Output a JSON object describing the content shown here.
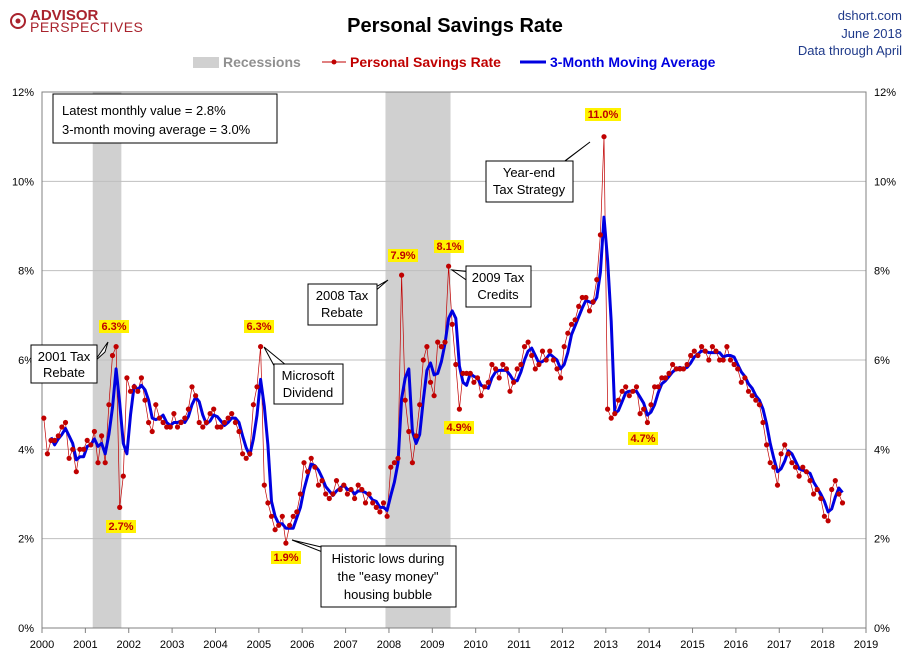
{
  "logo": {
    "line1": "ADVISOR",
    "line2": "PERSPECTIVES"
  },
  "header": {
    "title": "Personal Savings Rate",
    "source": "dshort.com",
    "date": "June 2018",
    "through": "Data through April"
  },
  "legend": {
    "recessions": "Recessions",
    "series": "Personal Savings Rate",
    "ma": "3-Month Moving Average"
  },
  "info_box": {
    "line1": "Latest monthly value = 2.8%",
    "line2": "3-month moving average = 3.0%"
  },
  "callouts": [
    {
      "lines": [
        "2001 Tax",
        "Rebate"
      ]
    },
    {
      "lines": [
        "Microsoft",
        "Dividend"
      ]
    },
    {
      "lines": [
        "Historic lows during",
        "the \"easy money\"",
        "housing bubble"
      ]
    },
    {
      "lines": [
        "2008 Tax",
        "Rebate"
      ]
    },
    {
      "lines": [
        "2009 Tax",
        "Credits"
      ]
    },
    {
      "lines": [
        "Year-end",
        "Tax Strategy"
      ]
    }
  ],
  "highlights": [
    {
      "label": "6.3%",
      "x": 2001.75,
      "y": 6.3
    },
    {
      "label": "2.7%",
      "x": 2001.83,
      "y": 2.7
    },
    {
      "label": "6.3%",
      "x": 2004.96,
      "y": 6.3
    },
    {
      "label": "1.9%",
      "x": 2005.5,
      "y": 1.9
    },
    {
      "label": "7.9%",
      "x": 2008.33,
      "y": 7.9
    },
    {
      "label": "8.1%",
      "x": 2009.33,
      "y": 8.1
    },
    {
      "label": "4.9%",
      "x": 2009.58,
      "y": 4.9
    },
    {
      "label": "11.0%",
      "x": 2012.96,
      "y": 11.0
    },
    {
      "label": "4.7%",
      "x": 2013.83,
      "y": 4.7
    }
  ],
  "colors": {
    "series": "#c00000",
    "ma": "#0000e0",
    "recession": "#d0d0d0",
    "grid": "#bfbfbf",
    "highlight": "#fff200"
  },
  "chart_data": {
    "type": "line",
    "title": "Personal Savings Rate",
    "xlim": [
      2000,
      2019
    ],
    "ylim": [
      0,
      12
    ],
    "x_ticks": [
      "2000",
      "2001",
      "2002",
      "2003",
      "2004",
      "2005",
      "2006",
      "2007",
      "2008",
      "2009",
      "2010",
      "2011",
      "2012",
      "2013",
      "2014",
      "2015",
      "2016",
      "2017",
      "2018",
      "2019"
    ],
    "y_ticks": [
      "0%",
      "2%",
      "4%",
      "6%",
      "8%",
      "10%",
      "12%"
    ],
    "grid": true,
    "legend_position": "top",
    "recessions": [
      [
        2001.17,
        2001.83
      ],
      [
        2007.92,
        2009.42
      ]
    ],
    "series": [
      {
        "name": "Personal Savings Rate",
        "monthly": [
          4.7,
          3.9,
          4.2,
          4.2,
          4.3,
          4.5,
          4.6,
          3.8,
          4.0,
          3.5,
          4.0,
          4.0,
          4.2,
          4.1,
          4.4,
          3.7,
          4.3,
          3.7,
          5.0,
          6.1,
          6.3,
          2.7,
          3.4,
          5.6,
          5.3,
          5.4,
          5.3,
          5.6,
          5.1,
          4.6,
          4.4,
          5.0,
          4.7,
          4.6,
          4.5,
          4.5,
          4.8,
          4.5,
          4.6,
          4.7,
          4.9,
          5.4,
          5.2,
          4.6,
          4.5,
          4.6,
          4.8,
          4.9,
          4.5,
          4.5,
          4.6,
          4.7,
          4.8,
          4.6,
          4.4,
          3.9,
          3.8,
          3.9,
          5.0,
          5.4,
          6.3,
          3.2,
          2.8,
          2.5,
          2.2,
          2.3,
          2.5,
          1.9,
          2.3,
          2.5,
          2.6,
          3.0,
          3.7,
          3.5,
          3.8,
          3.6,
          3.2,
          3.3,
          3.0,
          2.9,
          3.0,
          3.3,
          3.1,
          3.2,
          3.0,
          3.1,
          2.9,
          3.2,
          3.1,
          2.8,
          3.0,
          2.8,
          2.7,
          2.6,
          2.8,
          2.5,
          3.6,
          3.7,
          3.8,
          7.9,
          5.1,
          4.4,
          3.7,
          4.3,
          5.0,
          6.0,
          6.3,
          5.5,
          5.2,
          6.4,
          6.3,
          6.4,
          8.1,
          6.8,
          5.9,
          4.9,
          5.7,
          5.7,
          5.7,
          5.5,
          5.6,
          5.2,
          5.4,
          5.5,
          5.9,
          5.8,
          5.6,
          5.9,
          5.8,
          5.3,
          5.5,
          5.8,
          5.9,
          6.3,
          6.4,
          6.1,
          5.8,
          5.9,
          6.2,
          6.0,
          6.2,
          6.0,
          5.8,
          5.6,
          6.3,
          6.6,
          6.8,
          6.9,
          7.2,
          7.4,
          7.4,
          7.1,
          7.3,
          7.8,
          8.8,
          11.0,
          4.9,
          4.7,
          4.8,
          5.1,
          5.3,
          5.4,
          5.2,
          5.3,
          5.4,
          4.8,
          4.9,
          4.6,
          5.0,
          5.4,
          5.4,
          5.6,
          5.6,
          5.7,
          5.9,
          5.8,
          5.8,
          5.8,
          5.9,
          6.1,
          6.2,
          6.1,
          6.3,
          6.2,
          6.0,
          6.3,
          6.2,
          6.0,
          6.0,
          6.3,
          6.0,
          5.9,
          5.8,
          5.5,
          5.6,
          5.3,
          5.2,
          5.1,
          5.0,
          4.6,
          4.1,
          3.7,
          3.6,
          3.2,
          3.9,
          4.1,
          3.9,
          3.7,
          3.6,
          3.4,
          3.6,
          3.5,
          3.3,
          3.0,
          3.1,
          2.9,
          2.5,
          2.4,
          3.1,
          3.3,
          3.0,
          2.8
        ]
      },
      {
        "name": "3-Month Moving Average",
        "monthly": []
      }
    ]
  }
}
